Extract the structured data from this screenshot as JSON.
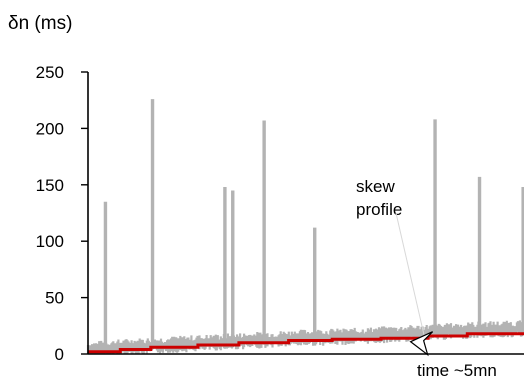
{
  "chart_data": {
    "type": "line",
    "ylabel": "δn (ms)",
    "xlabel": "time  ~5mn",
    "ylim": [
      0,
      250
    ],
    "yticks": [
      0,
      50,
      100,
      150,
      200,
      250
    ],
    "ytick_labels": [
      "0",
      "50",
      "100",
      "150",
      "200",
      "250"
    ],
    "xlim": [
      0,
      5
    ],
    "grid": false,
    "annotations": [
      {
        "text": [
          "skew",
          "profile"
        ],
        "x": 3.7,
        "y": 18,
        "arrow": true
      }
    ],
    "series": [
      {
        "role": "measured",
        "color": "#b3b3b3",
        "baseline": [
          [
            0.0,
            6
          ],
          [
            0.5,
            9
          ],
          [
            1.0,
            11
          ],
          [
            1.5,
            13
          ],
          [
            2.0,
            15
          ],
          [
            2.5,
            17
          ],
          [
            3.0,
            18
          ],
          [
            3.5,
            20
          ],
          [
            4.0,
            22
          ],
          [
            4.5,
            24
          ],
          [
            5.0,
            25
          ]
        ],
        "spikes": [
          {
            "x": 0.2,
            "y": 135
          },
          {
            "x": 0.74,
            "y": 226
          },
          {
            "x": 1.57,
            "y": 148
          },
          {
            "x": 1.66,
            "y": 145
          },
          {
            "x": 2.02,
            "y": 207
          },
          {
            "x": 2.6,
            "y": 112
          },
          {
            "x": 3.98,
            "y": 208
          },
          {
            "x": 4.49,
            "y": 157
          },
          {
            "x": 4.99,
            "y": 148
          },
          {
            "x": 5.0,
            "y": 102
          }
        ]
      },
      {
        "role": "skew profile",
        "color": "#cc0000",
        "steps": [
          [
            0.0,
            2
          ],
          [
            0.37,
            4
          ],
          [
            0.72,
            6
          ],
          [
            1.26,
            8
          ],
          [
            1.73,
            10
          ],
          [
            2.3,
            12
          ],
          [
            2.8,
            13
          ],
          [
            3.36,
            14
          ],
          [
            3.9,
            16
          ],
          [
            4.35,
            18
          ],
          [
            5.0,
            18
          ]
        ]
      }
    ]
  }
}
